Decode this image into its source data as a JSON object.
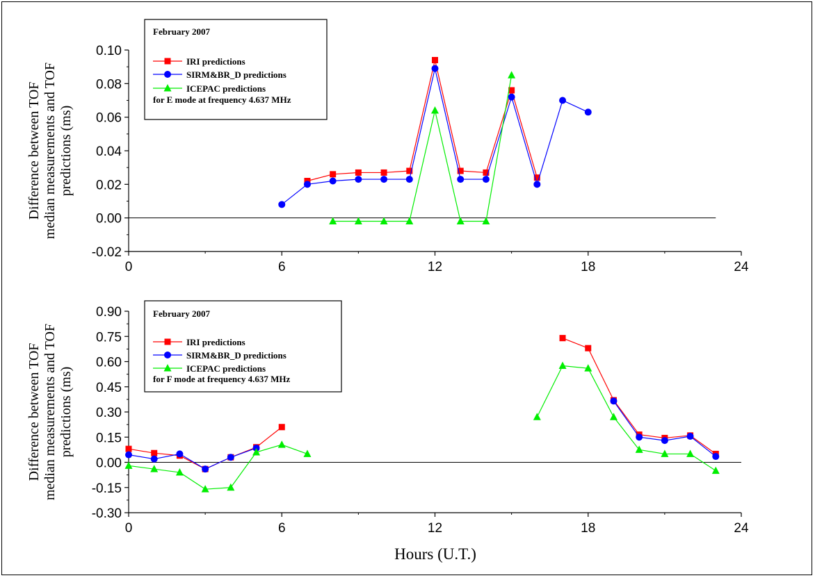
{
  "figure": {
    "xlabel": "Hours (U.T.)"
  },
  "chart_data": [
    {
      "type": "line",
      "ylabel": [
        "Difference between TOF",
        "median measurements and TOF",
        "predictions (ms)"
      ],
      "xlabel": "",
      "xlim": [
        0,
        24
      ],
      "xticks": [
        0,
        6,
        12,
        18,
        24
      ],
      "xtick_labels": [
        "0",
        "6",
        "12",
        "18",
        "24"
      ],
      "ylim": [
        -0.02,
        0.1
      ],
      "yticks": [
        -0.02,
        0,
        0.02,
        0.04,
        0.06,
        0.08,
        0.1
      ],
      "ytick_labels": [
        "-0.02",
        "0.00",
        "0.02",
        "0.04",
        "0.06",
        "0.08",
        "0.10"
      ],
      "zero_line": {
        "from": 0,
        "to": 23
      },
      "legend": {
        "title": "February 2007",
        "note": "for E mode at frequency 4.637 MHz",
        "placement": "top-left"
      },
      "series": [
        {
          "name": "IRI predictions",
          "color": "#ff0000",
          "marker": "square",
          "points": [
            [
              7,
              0.022
            ],
            [
              8,
              0.026
            ],
            [
              9,
              0.027
            ],
            [
              10,
              0.027
            ],
            [
              11,
              0.028
            ],
            [
              12,
              0.094
            ],
            [
              13,
              0.028
            ],
            [
              14,
              0.027
            ],
            [
              15,
              0.076
            ],
            [
              16,
              0.024
            ]
          ]
        },
        {
          "name": "SIRM&BR_D predictions",
          "color": "#0000ff",
          "marker": "circle",
          "points": [
            [
              6,
              0.008
            ],
            [
              7,
              0.02
            ],
            [
              8,
              0.022
            ],
            [
              9,
              0.023
            ],
            [
              10,
              0.023
            ],
            [
              11,
              0.023
            ],
            [
              12,
              0.089
            ],
            [
              13,
              0.023
            ],
            [
              14,
              0.023
            ],
            [
              15,
              0.072
            ],
            [
              16,
              0.02
            ],
            [
              17,
              0.07
            ],
            [
              18,
              0.063
            ]
          ]
        },
        {
          "name": "ICEPAC predictions",
          "color": "#00ee00",
          "marker": "triangle",
          "points": [
            [
              8,
              -0.002
            ],
            [
              9,
              -0.002
            ],
            [
              10,
              -0.002
            ],
            [
              11,
              -0.002
            ],
            [
              12,
              0.064
            ],
            [
              13,
              -0.002
            ],
            [
              14,
              -0.002
            ],
            [
              15,
              0.085
            ]
          ]
        }
      ]
    },
    {
      "type": "line",
      "ylabel": [
        "Difference between TOF",
        "median measurements and TOF",
        "predictions (ms)"
      ],
      "xlabel": "Hours (U.T.)",
      "xlim": [
        0,
        24
      ],
      "xticks": [
        0,
        6,
        12,
        18,
        24
      ],
      "xtick_labels": [
        "0",
        "6",
        "12",
        "18",
        "24"
      ],
      "ylim": [
        -0.3,
        0.9
      ],
      "yticks": [
        -0.3,
        -0.15,
        0,
        0.15,
        0.3,
        0.45,
        0.6,
        0.75,
        0.9
      ],
      "ytick_labels": [
        "-0.30",
        "-0.15",
        "0.00",
        "0.15",
        "0.30",
        "0.45",
        "0.60",
        "0.75",
        "0.90"
      ],
      "zero_line": {
        "from": 0,
        "to": 24
      },
      "legend": {
        "title": "February 2007",
        "note": "for F mode at frequency 4.637 MHz",
        "placement": "top-left"
      },
      "series": [
        {
          "name": "IRI predictions",
          "color": "#ff0000",
          "marker": "square",
          "segments": [
            [
              [
                0,
                0.08
              ],
              [
                1,
                0.055
              ],
              [
                2,
                0.04
              ],
              [
                3,
                -0.04
              ],
              [
                4,
                0.03
              ],
              [
                5,
                0.09
              ],
              [
                6,
                0.21
              ]
            ],
            [
              [
                17,
                0.74
              ],
              [
                18,
                0.68
              ],
              [
                19,
                0.37
              ],
              [
                20,
                0.165
              ],
              [
                21,
                0.145
              ],
              [
                22,
                0.16
              ],
              [
                23,
                0.05
              ]
            ]
          ]
        },
        {
          "name": "SIRM&BR_D predictions",
          "color": "#0000ff",
          "marker": "circle",
          "segments": [
            [
              [
                0,
                0.045
              ],
              [
                1,
                0.02
              ],
              [
                2,
                0.05
              ],
              [
                3,
                -0.04
              ],
              [
                4,
                0.03
              ],
              [
                5,
                0.085
              ]
            ],
            [
              [
                19,
                0.365
              ],
              [
                20,
                0.15
              ],
              [
                21,
                0.13
              ],
              [
                22,
                0.155
              ],
              [
                23,
                0.035
              ]
            ]
          ]
        },
        {
          "name": "ICEPAC predictions",
          "color": "#00ee00",
          "marker": "triangle",
          "segments": [
            [
              [
                0,
                -0.02
              ],
              [
                1,
                -0.04
              ],
              [
                2,
                -0.06
              ],
              [
                3,
                -0.16
              ],
              [
                4,
                -0.15
              ],
              [
                5,
                0.06
              ],
              [
                6,
                0.105
              ],
              [
                7,
                0.05
              ]
            ],
            [
              [
                16,
                0.27
              ],
              [
                17,
                0.575
              ],
              [
                18,
                0.56
              ],
              [
                19,
                0.27
              ],
              [
                20,
                0.075
              ],
              [
                21,
                0.05
              ],
              [
                22,
                0.05
              ],
              [
                23,
                -0.05
              ]
            ]
          ]
        }
      ]
    }
  ]
}
